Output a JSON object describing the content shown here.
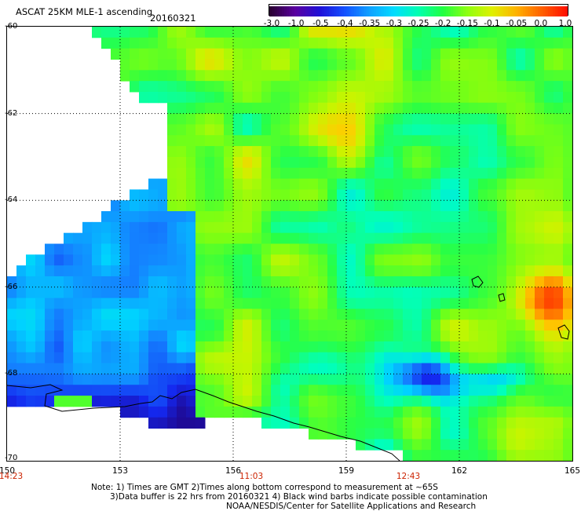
{
  "header": {
    "title": "ASCAT 25KM MLE-1 ascending",
    "date": "20160321"
  },
  "colorbar": {
    "labels": [
      "-3.0",
      "-1.0",
      "-0.5",
      "-0.4",
      "-0.35",
      "-0.3",
      "-0.25",
      "-0.2",
      "-0.15",
      "-0.1",
      "-0.05",
      "0.0",
      "1.0"
    ],
    "colors": [
      "#2b0033",
      "#5a00a0",
      "#1f10d8",
      "#1450ff",
      "#10a0ff",
      "#00dcff",
      "#00ffb0",
      "#20ff40",
      "#90ff10",
      "#e0f000",
      "#ffb000",
      "#ff6000",
      "#ff1000"
    ]
  },
  "map": {
    "lat_labels": [
      "-60",
      "-62",
      "-64",
      "-66",
      "-68",
      "-70"
    ],
    "lon_labels": [
      "150",
      "153",
      "156",
      "159",
      "162",
      "165"
    ],
    "time_labels": [
      "14:23",
      "11:03",
      "12:43"
    ]
  },
  "footer": {
    "line1": "Note: 1) Times are GMT 2)Times along bottom correspond to measurement at ~65S",
    "line2": "3)Data buffer is 22 hrs from 20160321 4) Black wind barbs indicate possible contamination",
    "line3": "NOAA/NESDIS/Center for Satellite Applications and Research"
  }
}
